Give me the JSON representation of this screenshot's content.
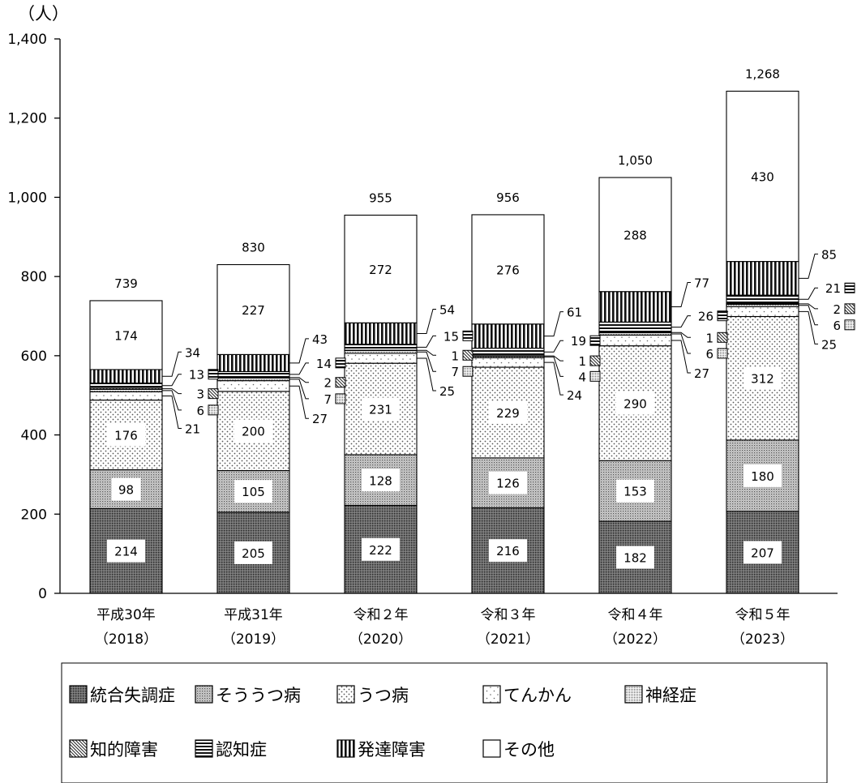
{
  "chart_data": {
    "type": "bar",
    "stacked": true,
    "y_unit_label": "（人）",
    "ylim": [
      0,
      1400
    ],
    "y_ticks": [
      {
        "value": 0,
        "label": "0"
      },
      {
        "value": 200,
        "label": "200"
      },
      {
        "value": 400,
        "label": "400"
      },
      {
        "value": 600,
        "label": "600"
      },
      {
        "value": 800,
        "label": "800"
      },
      {
        "value": 1000,
        "label": "1,000"
      },
      {
        "value": 1200,
        "label": "1,200"
      },
      {
        "value": 1400,
        "label": "1,400"
      }
    ],
    "categories": [
      {
        "line1": "平成30年",
        "line2": "（2018）"
      },
      {
        "line1": "平成31年",
        "line2": "（2019）"
      },
      {
        "line1": "令和２年",
        "line2": "（2020）"
      },
      {
        "line1": "令和３年",
        "line2": "（2021）"
      },
      {
        "line1": "令和４年",
        "line2": "（2022）"
      },
      {
        "line1": "令和５年",
        "line2": "（2023）"
      }
    ],
    "series": [
      {
        "name": "統合失調症",
        "pattern": "dense-dots",
        "values": [
          214,
          205,
          222,
          216,
          182,
          207
        ]
      },
      {
        "name": "そううつ病",
        "pattern": "medium-dots",
        "values": [
          98,
          105,
          128,
          126,
          153,
          180
        ]
      },
      {
        "name": "うつ病",
        "pattern": "sparse-dots",
        "values": [
          176,
          200,
          231,
          229,
          290,
          312
        ]
      },
      {
        "name": "てんかん",
        "pattern": "very-sparse-dots",
        "values": [
          21,
          27,
          25,
          24,
          27,
          25
        ]
      },
      {
        "name": "神経症",
        "pattern": "grid-dots",
        "values": [
          6,
          7,
          7,
          4,
          6,
          6
        ]
      },
      {
        "name": "知的障害",
        "pattern": "diagonal",
        "values": [
          3,
          2,
          1,
          1,
          1,
          2
        ]
      },
      {
        "name": "認知症",
        "pattern": "horizontal",
        "values": [
          13,
          14,
          15,
          19,
          26,
          21
        ]
      },
      {
        "name": "発達障害",
        "pattern": "vertical",
        "values": [
          34,
          43,
          54,
          61,
          77,
          85
        ]
      },
      {
        "name": "その他",
        "pattern": "blank",
        "values": [
          174,
          227,
          272,
          276,
          288,
          430
        ]
      }
    ],
    "totals": [
      {
        "value": 739,
        "label": "739"
      },
      {
        "value": 830,
        "label": "830"
      },
      {
        "value": 955,
        "label": "955"
      },
      {
        "value": 956,
        "label": "956"
      },
      {
        "value": 1050,
        "label": "1,050"
      },
      {
        "value": 1268,
        "label": "1,268"
      }
    ],
    "legend_position": "bottom",
    "grid": false
  }
}
